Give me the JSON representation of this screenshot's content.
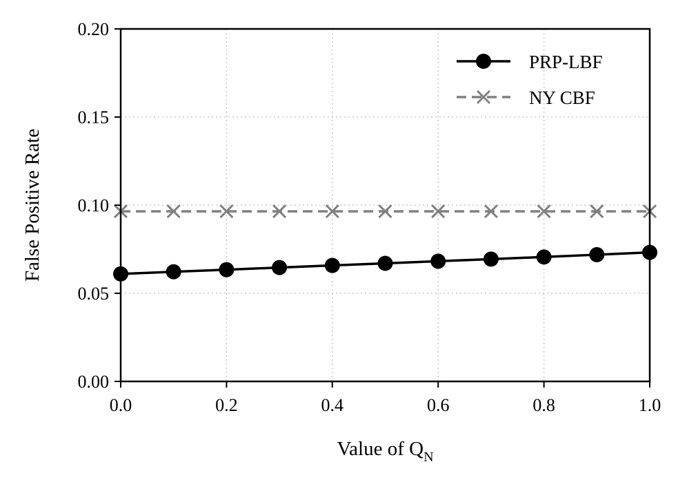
{
  "chart_data": {
    "type": "line",
    "xlabel": "Value of Q",
    "xlabel_subscript": "N",
    "ylabel": "False Positive Rate",
    "xlim": [
      0.0,
      1.0
    ],
    "ylim": [
      0.0,
      0.2
    ],
    "xticks": [
      "0.0",
      "0.2",
      "0.4",
      "0.6",
      "0.8",
      "1.0"
    ],
    "yticks": [
      "0.00",
      "0.05",
      "0.10",
      "0.15",
      "0.20"
    ],
    "grid": true,
    "legend_position": "top-right",
    "x": [
      0.0,
      0.1,
      0.2,
      0.3,
      0.4,
      0.5,
      0.6,
      0.7,
      0.8,
      0.9,
      1.0
    ],
    "series": [
      {
        "name": "PRP-LBF",
        "marker": "circle",
        "linestyle": "solid",
        "color": "#000000",
        "values": [
          0.061,
          0.0622,
          0.0634,
          0.0646,
          0.0658,
          0.067,
          0.0682,
          0.0694,
          0.0706,
          0.0719,
          0.0732
        ]
      },
      {
        "name": "NY CBF",
        "marker": "x",
        "linestyle": "dashed",
        "color": "#808080",
        "values": [
          0.0965,
          0.0965,
          0.0965,
          0.0965,
          0.0965,
          0.0965,
          0.0965,
          0.0965,
          0.0965,
          0.0965,
          0.0965
        ]
      }
    ]
  }
}
